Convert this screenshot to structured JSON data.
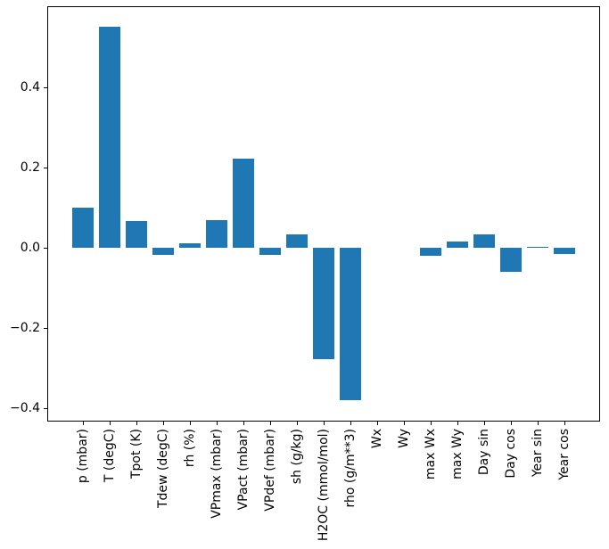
{
  "chart_data": {
    "type": "bar",
    "title": "",
    "xlabel": "",
    "ylabel": "",
    "categories": [
      "p (mbar)",
      "T (degC)",
      "Tpot (K)",
      "Tdew (degC)",
      "rh (%)",
      "VPmax (mbar)",
      "VPact (mbar)",
      "VPdef (mbar)",
      "sh (g/kg)",
      "H2OC (mmol/mol)",
      "rho (g/m**3)",
      "Wx",
      "Wy",
      "max Wx",
      "max Wy",
      "Day sin",
      "Day cos",
      "Year sin",
      "Year cos"
    ],
    "values": [
      0.1,
      0.55,
      0.066,
      -0.017,
      0.012,
      0.069,
      0.222,
      -0.018,
      0.034,
      -0.277,
      -0.38,
      0.0,
      0.0,
      -0.019,
      0.016,
      0.034,
      -0.06,
      0.003,
      -0.016
    ],
    "bar_color": "#1f77b4",
    "bar_width_fraction": 0.8,
    "ylim": [
      -0.433,
      0.602
    ],
    "yticks": [
      -0.4,
      -0.2,
      0.0,
      0.2,
      0.4
    ],
    "ytick_labels": [
      "−0.4",
      "−0.2",
      "0.0",
      "0.2",
      "0.4"
    ],
    "xtick_rotation_deg": 90,
    "grid": false,
    "legend": null,
    "axes_color": "#000000",
    "background_color": "#ffffff"
  }
}
